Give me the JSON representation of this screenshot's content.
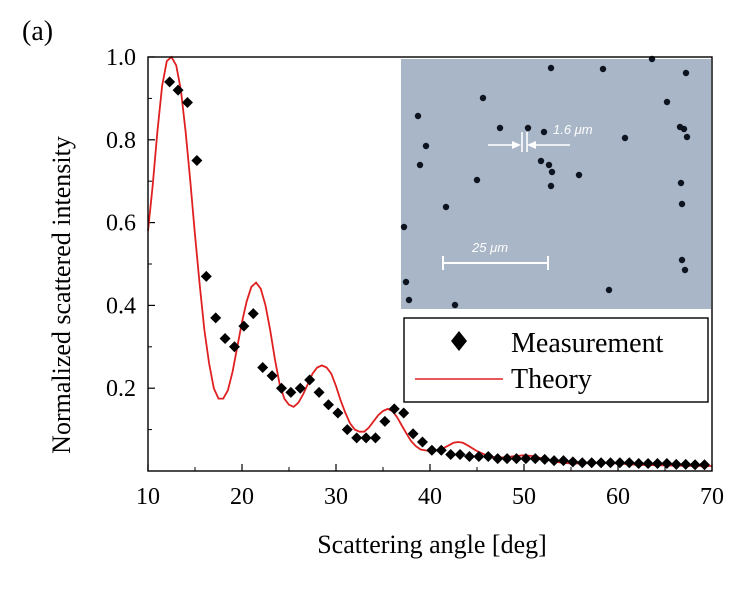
{
  "panel_label": "(a)",
  "inset": {
    "particle_size_label": "1.6 μm",
    "scale_bar_label": "25 μm",
    "background_color": "#a9b6c7"
  },
  "chart_data": {
    "type": "line",
    "xlabel": "Scattering angle [deg]",
    "ylabel": "Normalized scattered intensity",
    "xlim": [
      10,
      70
    ],
    "ylim": [
      0,
      1.0
    ],
    "x_ticks": [
      "10",
      "20",
      "30",
      "40",
      "50",
      "60",
      "70"
    ],
    "y_ticks": [
      "0.2",
      "0.4",
      "0.6",
      "0.8",
      "1.0"
    ],
    "y_tick_values": [
      0.2,
      0.4,
      0.6,
      0.8,
      1.0
    ],
    "x_tick_values": [
      10,
      20,
      30,
      40,
      50,
      60,
      70
    ],
    "grid": false,
    "legend_position": "right",
    "series": [
      {
        "name": "Measurement",
        "style": "scatter",
        "marker": "diamond",
        "color": "#000000",
        "points": [
          [
            12.3,
            0.94
          ],
          [
            13.2,
            0.92
          ],
          [
            14.2,
            0.89
          ],
          [
            15.2,
            0.75
          ],
          [
            16.2,
            0.47
          ],
          [
            17.2,
            0.37
          ],
          [
            18.2,
            0.32
          ],
          [
            19.2,
            0.3
          ],
          [
            20.2,
            0.35
          ],
          [
            21.2,
            0.38
          ],
          [
            22.2,
            0.25
          ],
          [
            23.2,
            0.23
          ],
          [
            24.2,
            0.2
          ],
          [
            25.2,
            0.19
          ],
          [
            26.2,
            0.2
          ],
          [
            27.2,
            0.22
          ],
          [
            28.2,
            0.19
          ],
          [
            29.2,
            0.16
          ],
          [
            30.2,
            0.14
          ],
          [
            31.2,
            0.1
          ],
          [
            32.2,
            0.08
          ],
          [
            33.2,
            0.08
          ],
          [
            34.2,
            0.08
          ],
          [
            35.2,
            0.12
          ],
          [
            36.2,
            0.15
          ],
          [
            37.2,
            0.14
          ],
          [
            38.2,
            0.09
          ],
          [
            39.2,
            0.07
          ],
          [
            40.2,
            0.05
          ],
          [
            41.2,
            0.05
          ],
          [
            42.2,
            0.04
          ],
          [
            43.2,
            0.04
          ],
          [
            44.2,
            0.035
          ],
          [
            45.2,
            0.035
          ],
          [
            46.2,
            0.035
          ],
          [
            47.2,
            0.03
          ],
          [
            48.2,
            0.03
          ],
          [
            49.2,
            0.03
          ],
          [
            50.2,
            0.03
          ],
          [
            51.2,
            0.03
          ],
          [
            52.2,
            0.028
          ],
          [
            53.2,
            0.025
          ],
          [
            54.2,
            0.025
          ],
          [
            55.2,
            0.022
          ],
          [
            56.2,
            0.02
          ],
          [
            57.2,
            0.02
          ],
          [
            58.2,
            0.02
          ],
          [
            59.2,
            0.02
          ],
          [
            60.2,
            0.02
          ],
          [
            61.2,
            0.02
          ],
          [
            62.2,
            0.018
          ],
          [
            63.2,
            0.018
          ],
          [
            64.2,
            0.018
          ],
          [
            65.2,
            0.018
          ],
          [
            66.2,
            0.016
          ],
          [
            67.2,
            0.016
          ],
          [
            68.2,
            0.015
          ],
          [
            69.2,
            0.015
          ]
        ]
      },
      {
        "name": "Theory",
        "style": "line",
        "color": "#e02020",
        "points": [
          [
            10,
            0.58
          ],
          [
            10.5,
            0.69
          ],
          [
            11,
            0.82
          ],
          [
            11.5,
            0.93
          ],
          [
            12,
            0.99
          ],
          [
            12.5,
            1.0
          ],
          [
            13,
            0.98
          ],
          [
            13.5,
            0.92
          ],
          [
            14,
            0.82
          ],
          [
            14.5,
            0.7
          ],
          [
            15,
            0.57
          ],
          [
            15.5,
            0.45
          ],
          [
            16,
            0.34
          ],
          [
            16.5,
            0.26
          ],
          [
            17,
            0.2
          ],
          [
            17.5,
            0.175
          ],
          [
            18,
            0.175
          ],
          [
            18.5,
            0.195
          ],
          [
            19,
            0.24
          ],
          [
            19.5,
            0.3
          ],
          [
            20,
            0.36
          ],
          [
            20.5,
            0.41
          ],
          [
            21,
            0.445
          ],
          [
            21.5,
            0.455
          ],
          [
            22,
            0.44
          ],
          [
            22.5,
            0.4
          ],
          [
            23,
            0.34
          ],
          [
            23.5,
            0.27
          ],
          [
            24,
            0.21
          ],
          [
            24.5,
            0.175
          ],
          [
            25,
            0.16
          ],
          [
            25.5,
            0.155
          ],
          [
            26,
            0.165
          ],
          [
            26.5,
            0.185
          ],
          [
            27,
            0.21
          ],
          [
            27.5,
            0.235
          ],
          [
            28,
            0.25
          ],
          [
            28.5,
            0.255
          ],
          [
            29,
            0.25
          ],
          [
            29.5,
            0.235
          ],
          [
            30,
            0.205
          ],
          [
            30.5,
            0.17
          ],
          [
            31,
            0.14
          ],
          [
            31.5,
            0.115
          ],
          [
            32,
            0.1
          ],
          [
            32.5,
            0.095
          ],
          [
            33,
            0.095
          ],
          [
            33.5,
            0.105
          ],
          [
            34,
            0.12
          ],
          [
            34.5,
            0.135
          ],
          [
            35,
            0.145
          ],
          [
            35.5,
            0.15
          ],
          [
            36,
            0.145
          ],
          [
            36.5,
            0.13
          ],
          [
            37,
            0.11
          ],
          [
            37.5,
            0.09
          ],
          [
            38,
            0.072
          ],
          [
            38.5,
            0.06
          ],
          [
            39,
            0.052
          ],
          [
            40,
            0.048
          ],
          [
            41,
            0.05
          ],
          [
            42,
            0.062
          ],
          [
            42.5,
            0.068
          ],
          [
            43,
            0.07
          ],
          [
            43.5,
            0.068
          ],
          [
            44,
            0.062
          ],
          [
            45,
            0.048
          ],
          [
            46,
            0.038
          ],
          [
            47,
            0.032
          ],
          [
            48,
            0.033
          ],
          [
            49,
            0.036
          ],
          [
            50,
            0.038
          ],
          [
            51,
            0.036
          ],
          [
            52,
            0.03
          ],
          [
            53,
            0.024
          ],
          [
            54,
            0.02
          ],
          [
            55,
            0.018
          ],
          [
            56,
            0.018
          ],
          [
            58,
            0.02
          ],
          [
            60,
            0.018
          ],
          [
            62,
            0.015
          ],
          [
            64,
            0.014
          ],
          [
            66,
            0.013
          ],
          [
            68,
            0.012
          ],
          [
            70,
            0.012
          ]
        ]
      }
    ]
  }
}
